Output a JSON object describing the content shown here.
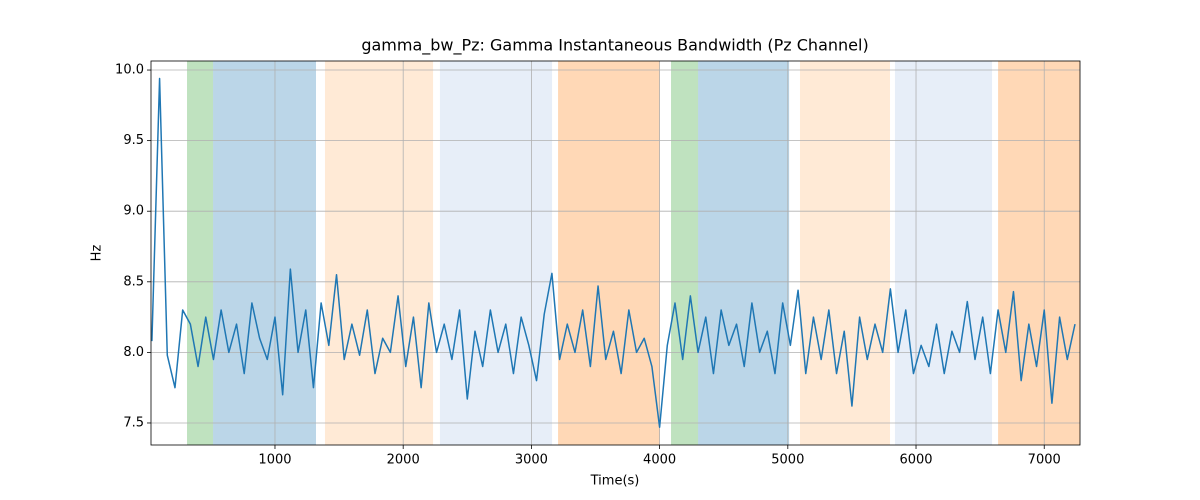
{
  "chart_data": {
    "type": "line",
    "title": "gamma_bw_Pz: Gamma Instantaneous Bandwidth (Pz Channel)",
    "x_label": "Time(s)",
    "y_label": "Hz",
    "xlim": [
      33,
      7279
    ],
    "ylim": [
      7.344,
      10.064
    ],
    "xticks": [
      1000,
      2000,
      3000,
      4000,
      5000,
      6000,
      7000
    ],
    "yticks": [
      7.5,
      {
        "value": 8,
        "label": "8.0"
      },
      8.5,
      {
        "value": 9,
        "label": "9.0"
      },
      9.5,
      {
        "value": 10,
        "label": "10.0"
      }
    ],
    "grid": true,
    "spans": [
      {
        "start": 314,
        "end": 517,
        "color": "#2ca02c"
      },
      {
        "start": 517,
        "end": 1320,
        "color": "#1f77b4"
      },
      {
        "start": 1390,
        "end": 2233,
        "color": "#ffbb78"
      },
      {
        "start": 2287,
        "end": 3161,
        "color": "#aec7e8"
      },
      {
        "start": 3208,
        "end": 4003,
        "color": "#ff7f0e"
      },
      {
        "start": 4089,
        "end": 4300,
        "color": "#2ca02c"
      },
      {
        "start": 4300,
        "end": 5010,
        "color": "#1f77b4"
      },
      {
        "start": 5095,
        "end": 5797,
        "color": "#ffbb78"
      },
      {
        "start": 5836,
        "end": 6593,
        "color": "#aec7e8"
      },
      {
        "start": 6640,
        "end": 7279,
        "color": "#ff7f0e"
      }
    ],
    "series": [
      {
        "name": "gamma_bw_Pz",
        "color": "#1f77b4",
        "x": [
          40,
          100,
          160,
          220,
          280,
          340,
          400,
          460,
          520,
          580,
          640,
          700,
          760,
          820,
          880,
          940,
          1000,
          1060,
          1120,
          1180,
          1240,
          1300,
          1360,
          1420,
          1480,
          1540,
          1600,
          1660,
          1720,
          1780,
          1840,
          1900,
          1960,
          2020,
          2080,
          2140,
          2200,
          2260,
          2320,
          2380,
          2440,
          2500,
          2560,
          2620,
          2680,
          2740,
          2800,
          2860,
          2920,
          2980,
          3040,
          3100,
          3160,
          3220,
          3280,
          3340,
          3400,
          3460,
          3520,
          3580,
          3640,
          3700,
          3760,
          3820,
          3880,
          3940,
          4000,
          4060,
          4120,
          4180,
          4240,
          4300,
          4360,
          4420,
          4480,
          4540,
          4600,
          4660,
          4720,
          4780,
          4840,
          4900,
          4960,
          5020,
          5080,
          5140,
          5200,
          5260,
          5320,
          5380,
          5440,
          5500,
          5560,
          5620,
          5680,
          5740,
          5800,
          5860,
          5920,
          5980,
          6040,
          6100,
          6160,
          6220,
          6280,
          6340,
          6400,
          6460,
          6520,
          6580,
          6640,
          6700,
          6760,
          6820,
          6880,
          6940,
          7000,
          7060,
          7120,
          7180,
          7240
        ],
        "values": [
          8.08,
          9.94,
          7.98,
          7.75,
          8.3,
          8.2,
          7.9,
          8.25,
          7.95,
          8.3,
          8.0,
          8.2,
          7.85,
          8.35,
          8.1,
          7.95,
          8.25,
          7.7,
          8.59,
          8.0,
          8.3,
          7.75,
          8.35,
          8.05,
          8.55,
          7.95,
          8.2,
          7.98,
          8.3,
          7.85,
          8.1,
          8.0,
          8.4,
          7.9,
          8.25,
          7.75,
          8.35,
          8.0,
          8.2,
          7.95,
          8.3,
          7.67,
          8.15,
          7.9,
          8.3,
          8.0,
          8.2,
          7.85,
          8.25,
          8.05,
          7.8,
          8.27,
          8.56,
          7.95,
          8.2,
          8.0,
          8.3,
          7.9,
          8.47,
          7.95,
          8.15,
          7.85,
          8.3,
          8.0,
          8.1,
          7.9,
          7.47,
          8.05,
          8.35,
          7.95,
          8.4,
          8.0,
          8.25,
          7.85,
          8.3,
          8.05,
          8.2,
          7.9,
          8.35,
          8.0,
          8.15,
          7.85,
          8.35,
          8.05,
          8.44,
          7.85,
          8.25,
          7.95,
          8.3,
          7.85,
          8.15,
          7.62,
          8.25,
          7.95,
          8.2,
          8.0,
          8.45,
          8.0,
          8.3,
          7.85,
          8.05,
          7.9,
          8.2,
          7.85,
          8.15,
          8.0,
          8.36,
          7.95,
          8.25,
          7.85,
          8.3,
          8.0,
          8.43,
          7.8,
          8.2,
          7.9,
          8.3,
          7.64,
          8.25,
          7.95,
          8.2
        ]
      }
    ]
  }
}
